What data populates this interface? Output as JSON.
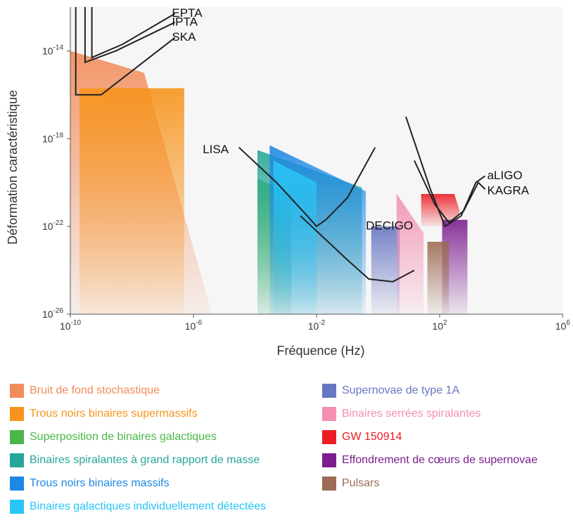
{
  "chart_data": {
    "type": "area",
    "xlabel": "Fréquence (Hz)",
    "ylabel": "Déformation caractéristique",
    "x_scale": "log10",
    "y_scale": "log10",
    "xlim": [
      1e-10,
      1000000.0
    ],
    "ylim": [
      1e-26,
      1e-12
    ],
    "x_ticks": [
      {
        "base": "10",
        "exp": "-10",
        "value": 1e-10
      },
      {
        "base": "10",
        "exp": "-6",
        "value": 1e-06
      },
      {
        "base": "10",
        "exp": "-2",
        "value": 0.01
      },
      {
        "base": "10",
        "exp": "2",
        "value": 100.0
      },
      {
        "base": "10",
        "exp": "6",
        "value": 1000000.0
      }
    ],
    "y_ticks": [
      {
        "base": "10",
        "exp": "-14",
        "value": 1e-14
      },
      {
        "base": "10",
        "exp": "-18",
        "value": 1e-18
      },
      {
        "base": "10",
        "exp": "-22",
        "value": 1e-22
      },
      {
        "base": "10",
        "exp": "-26",
        "value": 1e-26
      }
    ],
    "sources": [
      {
        "name": "Bruit de fond stochastique",
        "color": "#f28c5a",
        "polygon": [
          [
            1e-10,
            1e-14
          ],
          [
            2.5e-08,
            1e-15
          ],
          [
            4e-06,
            1e-26
          ],
          [
            1e-10,
            1e-26
          ]
        ]
      },
      {
        "name": "Trous noirs binaires supermassifs",
        "color": "#f7941d",
        "polygon": [
          [
            2e-10,
            2e-16
          ],
          [
            5e-07,
            2e-16
          ],
          [
            5e-07,
            1e-26
          ],
          [
            2e-10,
            1e-26
          ]
        ]
      },
      {
        "name": "Superposition de binaires galactiques",
        "color": "#4bb749",
        "polygon": [
          [
            0.00012,
            1.5e-20
          ],
          [
            0.0015,
            3e-21
          ],
          [
            0.0015,
            1e-26
          ],
          [
            0.00012,
            1e-26
          ]
        ]
      },
      {
        "name": "Binaires spiralantes à grand rapport de masse",
        "color": "#26a69a",
        "polygon": [
          [
            0.00012,
            3e-19
          ],
          [
            0.3,
            6e-21
          ],
          [
            0.3,
            1e-26
          ],
          [
            0.00012,
            1e-26
          ]
        ]
      },
      {
        "name": "Trous noirs binaires massifs",
        "color": "#1e88e5",
        "polygon": [
          [
            0.0003,
            5e-19
          ],
          [
            0.4,
            4e-21
          ],
          [
            0.4,
            1e-26
          ],
          [
            0.0003,
            1e-26
          ]
        ]
      },
      {
        "name": "Binaires galactiques individuellement détectées",
        "color": "#29c5f6",
        "polygon": [
          [
            0.0004,
            1e-19
          ],
          [
            0.01,
            1e-20
          ],
          [
            0.01,
            1e-26
          ],
          [
            0.0004,
            1e-26
          ]
        ]
      },
      {
        "name": "Supernovae de type 1A",
        "color": "#6877c2",
        "polygon": [
          [
            0.6,
            1e-22
          ],
          [
            5,
            1e-22
          ],
          [
            5,
            1e-26
          ],
          [
            0.6,
            1e-26
          ]
        ]
      },
      {
        "name": "Binaires serrées spiralantes",
        "color": "#f48fb1",
        "polygon": [
          [
            4,
            3e-21
          ],
          [
            30,
            5e-23
          ],
          [
            30,
            1e-26
          ],
          [
            4,
            1e-26
          ]
        ]
      },
      {
        "name": "GW 150914",
        "color": "#ed1c24",
        "polygon": [
          [
            25,
            3e-21
          ],
          [
            300,
            3e-21
          ],
          [
            450,
            5e-22
          ],
          [
            300,
            1e-22
          ],
          [
            25,
            1e-22
          ]
        ]
      },
      {
        "name": "Effondrement de cœurs de supernovae",
        "color": "#7b1f8f",
        "polygon": [
          [
            120,
            2e-22
          ],
          [
            800,
            2e-22
          ],
          [
            800,
            1e-26
          ],
          [
            120,
            1e-26
          ]
        ]
      },
      {
        "name": "Pulsars",
        "color": "#9c6b55",
        "polygon": [
          [
            40,
            2e-23
          ],
          [
            200,
            2e-23
          ],
          [
            200,
            1e-26
          ],
          [
            40,
            1e-26
          ]
        ]
      }
    ],
    "detectors": [
      {
        "name": "EPTA",
        "curve": [
          [
            5e-10,
            1e-12
          ],
          [
            5e-10,
            5e-15
          ],
          [
            5e-09,
            2e-14
          ],
          [
            2.5e-07,
            5e-13
          ]
        ],
        "label_at": [
          2e-07,
          5e-13
        ]
      },
      {
        "name": "IPTA",
        "curve": [
          [
            3e-10,
            1e-12
          ],
          [
            3e-10,
            3e-15
          ],
          [
            3e-09,
            1e-14
          ],
          [
            2.5e-07,
            2e-13
          ]
        ],
        "label_at": [
          2e-07,
          2e-13
        ]
      },
      {
        "name": "SKA",
        "curve": [
          [
            1.5e-10,
            1e-12
          ],
          [
            1.5e-10,
            1e-16
          ],
          [
            1e-09,
            1e-16
          ],
          [
            2.5e-07,
            4e-14
          ]
        ],
        "label_at": [
          2e-07,
          4e-14
        ]
      },
      {
        "name": "LISA",
        "curve": [
          [
            3e-05,
            4e-19
          ],
          [
            0.0005,
            1e-20
          ],
          [
            0.005,
            3e-22
          ],
          [
            0.01,
            1e-22
          ],
          [
            0.02,
            2e-22
          ],
          [
            0.1,
            2e-21
          ],
          [
            0.8,
            4e-19
          ]
        ],
        "label_at": [
          2e-06,
          3e-19
        ]
      },
      {
        "name": "DECIGO",
        "curve": [
          [
            0.003,
            3e-22
          ],
          [
            0.1,
            3e-24
          ],
          [
            0.5,
            4e-25
          ],
          [
            3,
            3e-25
          ],
          [
            15,
            1e-24
          ]
        ],
        "label_at": [
          0.4,
          1e-22
        ]
      },
      {
        "name": "aLIGO",
        "curve": [
          [
            8,
            1e-17
          ],
          [
            50,
            5e-21
          ],
          [
            150,
            1e-22
          ],
          [
            500,
            3e-22
          ],
          [
            1500,
            1e-20
          ],
          [
            3000,
            2e-20
          ]
        ],
        "label_at": [
          3500,
          2e-20
        ]
      },
      {
        "name": "KAGRA",
        "curve": [
          [
            15,
            1e-19
          ],
          [
            70,
            1e-21
          ],
          [
            200,
            1.5e-22
          ],
          [
            600,
            5e-22
          ],
          [
            1800,
            1e-20
          ],
          [
            3000,
            5e-21
          ]
        ],
        "label_at": [
          3500,
          4e-21
        ]
      }
    ]
  },
  "legend": {
    "items": [
      {
        "label": "Bruit de fond stochastique",
        "color": "#f28c5a"
      },
      {
        "label": "Trous noirs binaires supermassifs",
        "color": "#f7941d"
      },
      {
        "label": "Superposition de binaires galactiques",
        "color": "#4bb749"
      },
      {
        "label": "Binaires spiralantes à grand rapport de masse",
        "color": "#26a69a"
      },
      {
        "label": "Trous noirs binaires massifs",
        "color": "#1e88e5"
      },
      {
        "label": "Binaires galactiques individuellement détectées",
        "color": "#29c5f6"
      },
      {
        "label": "Supernovae de type 1A",
        "color": "#6877c2"
      },
      {
        "label": "Binaires serrées spiralantes",
        "color": "#f48fb1"
      },
      {
        "label": "GW 150914",
        "color": "#ed1c24"
      },
      {
        "label": "Effondrement de cœurs de supernovae",
        "color": "#7b1f8f"
      },
      {
        "label": "Pulsars",
        "color": "#9c6b55"
      }
    ]
  }
}
